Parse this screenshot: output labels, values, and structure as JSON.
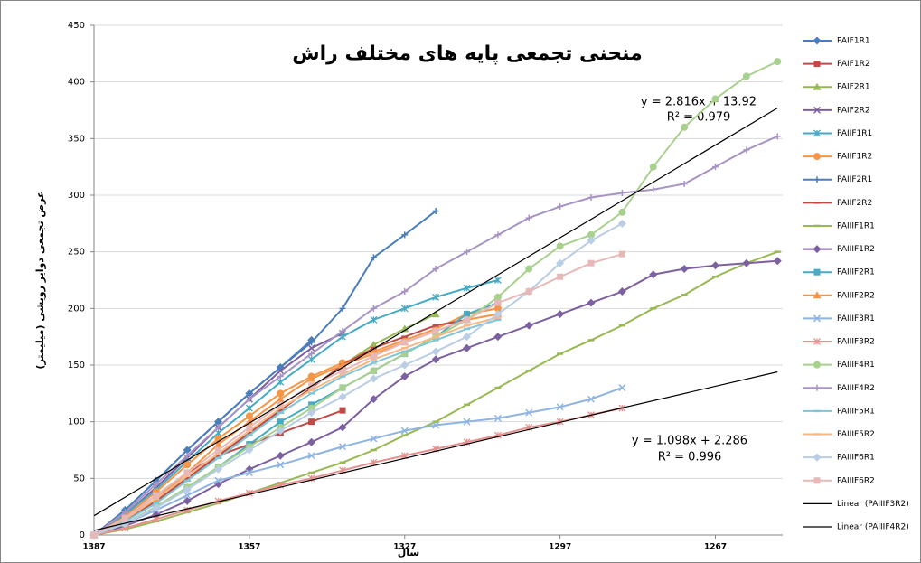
{
  "chart_data": {
    "type": "line",
    "title": "منحنی تجمعی پایه های مختلف راش",
    "x_label": "سال",
    "y_label": "عرض تجمعی دوایر رویشی (میلیمتر)",
    "annotations": [
      "y = 2.816x + 13.92",
      "R² = 0.979",
      "y = 1.098x + 2.286",
      "R² = 0.996"
    ],
    "x": [
      1387,
      1381,
      1375,
      1369,
      1363,
      1357,
      1351,
      1345,
      1339,
      1333,
      1327,
      1321,
      1315,
      1309,
      1303,
      1297,
      1291,
      1285,
      1279,
      1273,
      1267,
      1261,
      1255
    ],
    "xlim": [
      1387,
      1254
    ],
    "xticks": [
      1387,
      1357,
      1327,
      1297,
      1267
    ],
    "ylim": [
      0,
      450
    ],
    "yticks": [
      0,
      50,
      100,
      150,
      200,
      250,
      300,
      350,
      400,
      450
    ],
    "grid": true,
    "legend": "right",
    "series": [
      {
        "name": "PAIF1R1",
        "color": "#4a7ebb",
        "marker": "diamond",
        "values": [
          0,
          22,
          48,
          75,
          100,
          125,
          148,
          172,
          null,
          null,
          null,
          null,
          null,
          null,
          null,
          null,
          null,
          null,
          null,
          null,
          null,
          null,
          null
        ]
      },
      {
        "name": "PAIF1R2",
        "color": "#be4b48",
        "marker": "square",
        "values": [
          0,
          15,
          35,
          55,
          70,
          80,
          90,
          100,
          110,
          null,
          null,
          null,
          null,
          null,
          null,
          null,
          null,
          null,
          null,
          null,
          null,
          null,
          null
        ]
      },
      {
        "name": "PAIF2R1",
        "color": "#98b954",
        "marker": "triangle",
        "values": [
          0,
          12,
          30,
          50,
          70,
          90,
          110,
          130,
          150,
          168,
          182,
          195,
          null,
          null,
          null,
          null,
          null,
          null,
          null,
          null,
          null,
          null,
          null
        ]
      },
      {
        "name": "PAIF2R2",
        "color": "#7d60a0",
        "marker": "x",
        "values": [
          0,
          18,
          42,
          68,
          95,
          120,
          145,
          165,
          178,
          null,
          null,
          null,
          null,
          null,
          null,
          null,
          null,
          null,
          null,
          null,
          null,
          null,
          null
        ]
      },
      {
        "name": "PAIIF1R1",
        "color": "#46aac4",
        "marker": "star",
        "values": [
          0,
          18,
          40,
          65,
          90,
          112,
          135,
          155,
          175,
          190,
          200,
          210,
          218,
          225,
          null,
          null,
          null,
          null,
          null,
          null,
          null,
          null,
          null
        ]
      },
      {
        "name": "PAIIF1R2",
        "color": "#f69545",
        "marker": "circle",
        "values": [
          0,
          16,
          38,
          62,
          85,
          105,
          125,
          140,
          152,
          162,
          172,
          182,
          195,
          200,
          null,
          null,
          null,
          null,
          null,
          null,
          null,
          null,
          null
        ]
      },
      {
        "name": "PAIIF2R1",
        "color": "#4a7ebb",
        "marker": "plus",
        "values": [
          0,
          22,
          48,
          75,
          100,
          125,
          148,
          170,
          200,
          245,
          265,
          286,
          null,
          null,
          null,
          null,
          null,
          null,
          null,
          null,
          null,
          null,
          null
        ]
      },
      {
        "name": "PAIIF2R2",
        "color": "#be4b48",
        "marker": "dash",
        "values": [
          0,
          12,
          30,
          50,
          70,
          90,
          110,
          130,
          150,
          165,
          175,
          185,
          190,
          null,
          null,
          null,
          null,
          null,
          null,
          null,
          null,
          null,
          null
        ]
      },
      {
        "name": "PAIIIF1R1",
        "color": "#98b954",
        "marker": "dash",
        "values": [
          0,
          5,
          12,
          20,
          28,
          37,
          46,
          55,
          64,
          75,
          88,
          100,
          115,
          130,
          145,
          160,
          172,
          185,
          200,
          212,
          228,
          240,
          250
        ]
      },
      {
        "name": "PAIIIF1R2",
        "color": "#7d60a0",
        "marker": "diamond",
        "values": [
          0,
          8,
          18,
          30,
          45,
          58,
          70,
          82,
          95,
          120,
          140,
          155,
          165,
          175,
          185,
          195,
          205,
          215,
          230,
          235,
          238,
          240,
          242
        ]
      },
      {
        "name": "PAIIIF2R1",
        "color": "#46aac4",
        "marker": "square",
        "values": [
          0,
          10,
          25,
          42,
          60,
          80,
          100,
          115,
          130,
          145,
          160,
          175,
          195,
          205,
          null,
          null,
          null,
          null,
          null,
          null,
          null,
          null,
          null
        ]
      },
      {
        "name": "PAIIIF2R2",
        "color": "#f69545",
        "marker": "triangle",
        "values": [
          0,
          14,
          32,
          55,
          80,
          100,
          120,
          138,
          150,
          160,
          170,
          180,
          190,
          195,
          null,
          null,
          null,
          null,
          null,
          null,
          null,
          null,
          null
        ]
      },
      {
        "name": "PAIIIF3R1",
        "color": "#8eb4e3",
        "marker": "x",
        "values": [
          0,
          10,
          22,
          35,
          48,
          55,
          62,
          70,
          78,
          85,
          92,
          97,
          100,
          103,
          108,
          113,
          120,
          130,
          null,
          null,
          null,
          null,
          null
        ]
      },
      {
        "name": "PAIIIF3R2",
        "color": "#e6918f",
        "marker": "star",
        "values": [
          0,
          6,
          14,
          22,
          30,
          37,
          44,
          50,
          57,
          64,
          70,
          76,
          82,
          88,
          95,
          100,
          106,
          112,
          null,
          null,
          null,
          null,
          null
        ]
      },
      {
        "name": "PAIIIF4R1",
        "color": "#a9d18e",
        "marker": "circle",
        "values": [
          0,
          10,
          25,
          42,
          60,
          78,
          95,
          112,
          130,
          145,
          160,
          175,
          190,
          210,
          235,
          255,
          265,
          285,
          325,
          360,
          385,
          405,
          418
        ]
      },
      {
        "name": "PAIIIF4R2",
        "color": "#a794c4",
        "marker": "plus",
        "values": [
          0,
          20,
          45,
          70,
          95,
          120,
          140,
          160,
          180,
          200,
          215,
          235,
          250,
          265,
          280,
          290,
          298,
          302,
          305,
          310,
          325,
          340,
          352
        ]
      },
      {
        "name": "PAIIIF5R1",
        "color": "#7fc6d8",
        "marker": "dash",
        "values": [
          0,
          12,
          28,
          48,
          68,
          88,
          108,
          125,
          140,
          152,
          162,
          172,
          182,
          190,
          null,
          null,
          null,
          null,
          null,
          null,
          null,
          null,
          null
        ]
      },
      {
        "name": "PAIIIF5R2",
        "color": "#f9b784",
        "marker": "dash",
        "values": [
          0,
          14,
          32,
          52,
          72,
          92,
          112,
          128,
          142,
          155,
          165,
          175,
          185,
          192,
          null,
          null,
          null,
          null,
          null,
          null,
          null,
          null,
          null
        ]
      },
      {
        "name": "PAIIIF6R1",
        "color": "#b9cde5",
        "marker": "diamond",
        "values": [
          0,
          10,
          24,
          40,
          58,
          75,
          92,
          108,
          122,
          138,
          150,
          162,
          175,
          195,
          215,
          240,
          260,
          275,
          null,
          null,
          null,
          null,
          null
        ]
      },
      {
        "name": "PAIIIF6R2",
        "color": "#e6b9b8",
        "marker": "square",
        "values": [
          0,
          15,
          35,
          55,
          75,
          95,
          115,
          132,
          145,
          158,
          170,
          180,
          190,
          205,
          215,
          228,
          240,
          248,
          null,
          null,
          null,
          null,
          null
        ]
      },
      {
        "name": "Linear (PAIIIF3R2)",
        "color": "#000000",
        "marker": "none",
        "x": [
          1387,
          1255
        ],
        "values": [
          4,
          144
        ]
      },
      {
        "name": "Linear (PAIIIF4R2)",
        "color": "#000000",
        "marker": "none",
        "x": [
          1387,
          1255
        ],
        "values": [
          17,
          377
        ]
      }
    ]
  }
}
